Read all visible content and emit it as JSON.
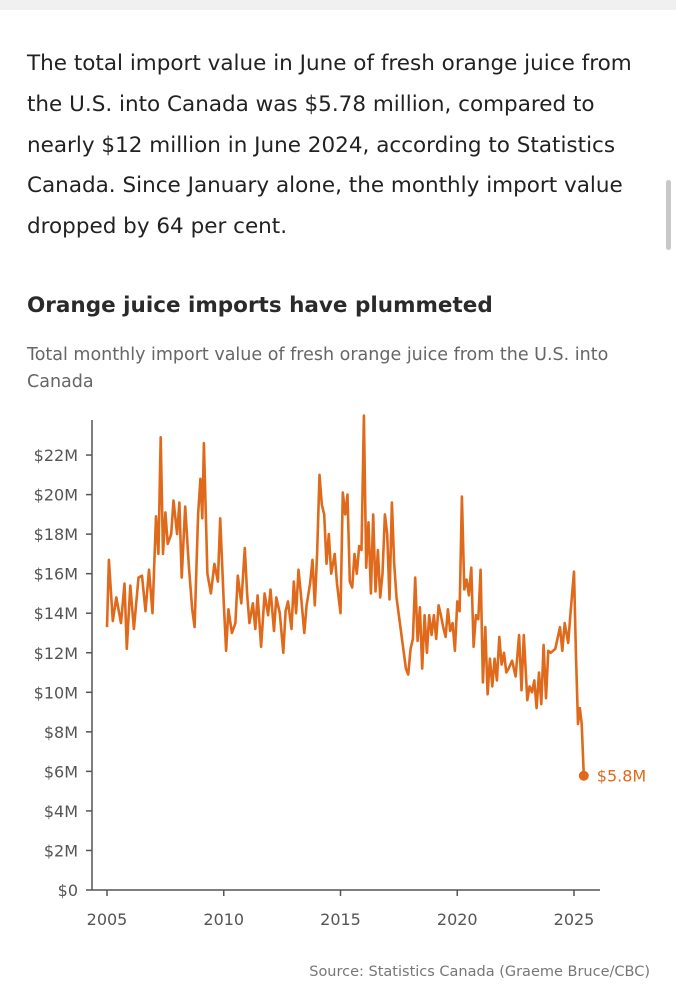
{
  "article": {
    "paragraph": "The total import value in June of fresh orange juice from the U.S. into Canada was $5.78 million, compared to nearly $12 million in June 2024, according to Statistics Canada. Since January alone, the monthly import value dropped by 64 per cent."
  },
  "chart_data": {
    "type": "line",
    "title": "Orange juice imports have plummeted",
    "subtitle": "Total monthly import value of fresh orange juice from the U.S. into Canada",
    "source": "Source: Statistics Canada (Graeme Bruce/CBC)",
    "xlabel": "",
    "ylabel": "",
    "xlim": [
      2005,
      2026
    ],
    "ylim": [
      0,
      24
    ],
    "x_ticks": [
      "2005",
      "2010",
      "2015",
      "2020",
      "2025"
    ],
    "y_ticks": [
      "$0",
      "$2M",
      "$4M",
      "$6M",
      "$8M",
      "$10M",
      "$12M",
      "$14M",
      "$16M",
      "$18M",
      "$20M",
      "$22M"
    ],
    "end_label": "$5.8M",
    "color": "#e06a1b",
    "grid": false,
    "points": [
      [
        2005.0,
        13.3
      ],
      [
        2005.08,
        16.7
      ],
      [
        2005.25,
        13.6
      ],
      [
        2005.4,
        14.8
      ],
      [
        2005.6,
        13.5
      ],
      [
        2005.75,
        15.5
      ],
      [
        2005.85,
        12.2
      ],
      [
        2006.0,
        15.4
      ],
      [
        2006.15,
        13.2
      ],
      [
        2006.35,
        15.8
      ],
      [
        2006.5,
        15.9
      ],
      [
        2006.65,
        14.1
      ],
      [
        2006.8,
        16.2
      ],
      [
        2006.95,
        14.0
      ],
      [
        2007.1,
        18.9
      ],
      [
        2007.2,
        17.0
      ],
      [
        2007.3,
        22.9
      ],
      [
        2007.4,
        17.0
      ],
      [
        2007.5,
        19.1
      ],
      [
        2007.6,
        17.5
      ],
      [
        2007.75,
        18.0
      ],
      [
        2007.85,
        19.7
      ],
      [
        2008.0,
        18.0
      ],
      [
        2008.1,
        19.6
      ],
      [
        2008.2,
        15.8
      ],
      [
        2008.35,
        19.4
      ],
      [
        2008.5,
        16.5
      ],
      [
        2008.65,
        14.2
      ],
      [
        2008.75,
        13.3
      ],
      [
        2008.9,
        19.0
      ],
      [
        2009.0,
        20.8
      ],
      [
        2009.08,
        18.8
      ],
      [
        2009.15,
        22.6
      ],
      [
        2009.3,
        16.0
      ],
      [
        2009.45,
        15.0
      ],
      [
        2009.6,
        16.5
      ],
      [
        2009.75,
        15.6
      ],
      [
        2009.85,
        18.8
      ],
      [
        2010.0,
        14.5
      ],
      [
        2010.1,
        12.1
      ],
      [
        2010.2,
        14.2
      ],
      [
        2010.35,
        13.0
      ],
      [
        2010.5,
        13.5
      ],
      [
        2010.6,
        15.9
      ],
      [
        2010.75,
        14.5
      ],
      [
        2010.9,
        17.3
      ],
      [
        2011.0,
        15.0
      ],
      [
        2011.1,
        13.5
      ],
      [
        2011.25,
        14.5
      ],
      [
        2011.35,
        13.2
      ],
      [
        2011.45,
        14.9
      ],
      [
        2011.6,
        12.3
      ],
      [
        2011.75,
        15.0
      ],
      [
        2011.9,
        13.9
      ],
      [
        2012.0,
        15.2
      ],
      [
        2012.15,
        13.1
      ],
      [
        2012.25,
        14.8
      ],
      [
        2012.4,
        14.0
      ],
      [
        2012.55,
        12.0
      ],
      [
        2012.65,
        14.1
      ],
      [
        2012.75,
        14.6
      ],
      [
        2012.9,
        13.2
      ],
      [
        2013.0,
        15.6
      ],
      [
        2013.1,
        14.0
      ],
      [
        2013.2,
        16.2
      ],
      [
        2013.3,
        15.0
      ],
      [
        2013.45,
        13.0
      ],
      [
        2013.55,
        14.4
      ],
      [
        2013.7,
        15.5
      ],
      [
        2013.8,
        16.7
      ],
      [
        2013.9,
        14.4
      ],
      [
        2014.0,
        17.0
      ],
      [
        2014.1,
        21.0
      ],
      [
        2014.2,
        19.5
      ],
      [
        2014.3,
        19.0
      ],
      [
        2014.4,
        16.5
      ],
      [
        2014.5,
        18.0
      ],
      [
        2014.6,
        16.0
      ],
      [
        2014.75,
        17.0
      ],
      [
        2014.85,
        15.5
      ],
      [
        2015.0,
        14.0
      ],
      [
        2015.1,
        20.1
      ],
      [
        2015.2,
        19.0
      ],
      [
        2015.3,
        20.0
      ],
      [
        2015.4,
        15.6
      ],
      [
        2015.5,
        15.3
      ],
      [
        2015.6,
        17.0
      ],
      [
        2015.7,
        16.0
      ],
      [
        2015.8,
        17.4
      ],
      [
        2015.9,
        17.2
      ],
      [
        2016.0,
        24.0
      ],
      [
        2016.1,
        16.3
      ],
      [
        2016.2,
        18.6
      ],
      [
        2016.3,
        15.0
      ],
      [
        2016.4,
        19.0
      ],
      [
        2016.5,
        15.1
      ],
      [
        2016.6,
        17.2
      ],
      [
        2016.7,
        14.8
      ],
      [
        2016.8,
        16.0
      ],
      [
        2016.9,
        19.0
      ],
      [
        2017.0,
        18.0
      ],
      [
        2017.1,
        14.7
      ],
      [
        2017.2,
        19.6
      ],
      [
        2017.3,
        16.5
      ],
      [
        2017.4,
        14.8
      ],
      [
        2017.6,
        13.0
      ],
      [
        2017.8,
        11.2
      ],
      [
        2017.9,
        10.9
      ],
      [
        2018.0,
        12.2
      ],
      [
        2018.1,
        12.7
      ],
      [
        2018.2,
        15.8
      ],
      [
        2018.3,
        12.6
      ],
      [
        2018.4,
        14.3
      ],
      [
        2018.5,
        11.2
      ],
      [
        2018.6,
        13.9
      ],
      [
        2018.7,
        12.0
      ],
      [
        2018.8,
        13.9
      ],
      [
        2018.9,
        12.9
      ],
      [
        2019.0,
        13.9
      ],
      [
        2019.1,
        12.7
      ],
      [
        2019.2,
        14.4
      ],
      [
        2019.3,
        13.9
      ],
      [
        2019.4,
        13.3
      ],
      [
        2019.5,
        12.8
      ],
      [
        2019.6,
        14.2
      ],
      [
        2019.7,
        13.1
      ],
      [
        2019.8,
        13.5
      ],
      [
        2019.9,
        12.1
      ],
      [
        2020.0,
        14.6
      ],
      [
        2020.1,
        14.1
      ],
      [
        2020.2,
        19.9
      ],
      [
        2020.3,
        15.2
      ],
      [
        2020.4,
        15.7
      ],
      [
        2020.5,
        14.9
      ],
      [
        2020.6,
        16.3
      ],
      [
        2020.7,
        12.3
      ],
      [
        2020.8,
        13.9
      ],
      [
        2020.9,
        13.7
      ],
      [
        2021.0,
        16.2
      ],
      [
        2021.1,
        10.5
      ],
      [
        2021.2,
        13.3
      ],
      [
        2021.3,
        9.9
      ],
      [
        2021.4,
        11.7
      ],
      [
        2021.5,
        10.3
      ],
      [
        2021.6,
        11.7
      ],
      [
        2021.7,
        10.6
      ],
      [
        2021.8,
        12.8
      ],
      [
        2021.9,
        11.4
      ],
      [
        2022.0,
        12.0
      ],
      [
        2022.1,
        11.0
      ],
      [
        2022.2,
        11.2
      ],
      [
        2022.35,
        11.6
      ],
      [
        2022.5,
        10.8
      ],
      [
        2022.65,
        12.9
      ],
      [
        2022.75,
        10.1
      ],
      [
        2022.85,
        12.9
      ],
      [
        2023.0,
        9.6
      ],
      [
        2023.1,
        10.3
      ],
      [
        2023.2,
        10.0
      ],
      [
        2023.3,
        10.6
      ],
      [
        2023.4,
        9.2
      ],
      [
        2023.5,
        11.0
      ],
      [
        2023.6,
        9.4
      ],
      [
        2023.7,
        12.4
      ],
      [
        2023.8,
        9.7
      ],
      [
        2023.9,
        12.1
      ],
      [
        2024.0,
        12.0
      ],
      [
        2024.2,
        12.2
      ],
      [
        2024.4,
        13.3
      ],
      [
        2024.5,
        12.1
      ],
      [
        2024.6,
        13.5
      ],
      [
        2024.75,
        12.5
      ],
      [
        2024.85,
        14.0
      ],
      [
        2025.0,
        16.1
      ],
      [
        2025.08,
        12.0
      ],
      [
        2025.17,
        8.4
      ],
      [
        2025.25,
        9.2
      ],
      [
        2025.33,
        8.4
      ],
      [
        2025.42,
        5.78
      ]
    ]
  }
}
